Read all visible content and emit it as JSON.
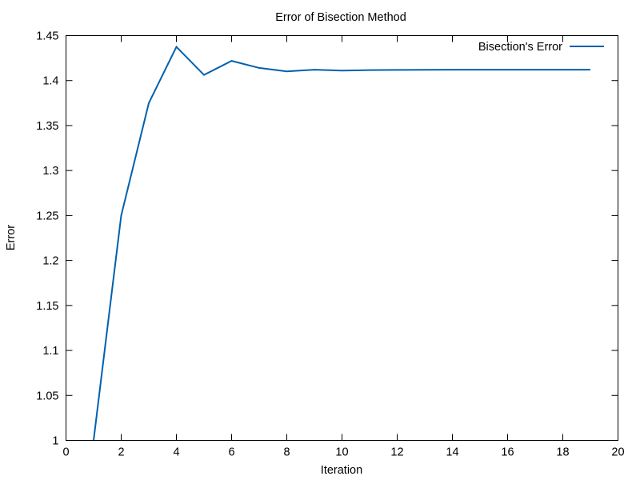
{
  "chart_data": {
    "type": "line",
    "title": "Error of Bisection Method",
    "xlabel": "Iteration",
    "ylabel": "Error",
    "xlim": [
      0,
      20
    ],
    "ylim": [
      1,
      1.45
    ],
    "x_ticks": [
      "0",
      "2",
      "4",
      "6",
      "8",
      "10",
      "12",
      "14",
      "16",
      "18",
      "20"
    ],
    "y_ticks": [
      "1",
      "1.05",
      "1.1",
      "1.15",
      "1.2",
      "1.25",
      "1.3",
      "1.35",
      "1.4",
      "1.45"
    ],
    "grid": false,
    "legend_position": "top-right",
    "series": [
      {
        "name": "Bisection's Error",
        "color": "#0060ad",
        "x": [
          1,
          2,
          3,
          4,
          5,
          6,
          7,
          8,
          9,
          10,
          11,
          12,
          13,
          14,
          15,
          16,
          17,
          18,
          19
        ],
        "y": [
          1.0,
          1.25,
          1.375,
          1.4375,
          1.40625,
          1.421875,
          1.4140625,
          1.41015625,
          1.412109375,
          1.4111328125,
          1.41162109375,
          1.411865234375,
          1.4119873046875,
          1.41204833984375,
          1.412078857421875,
          1.4120941162109375,
          1.4121017456054688,
          1.4120979309082031,
          1.412099838256836
        ]
      }
    ]
  }
}
